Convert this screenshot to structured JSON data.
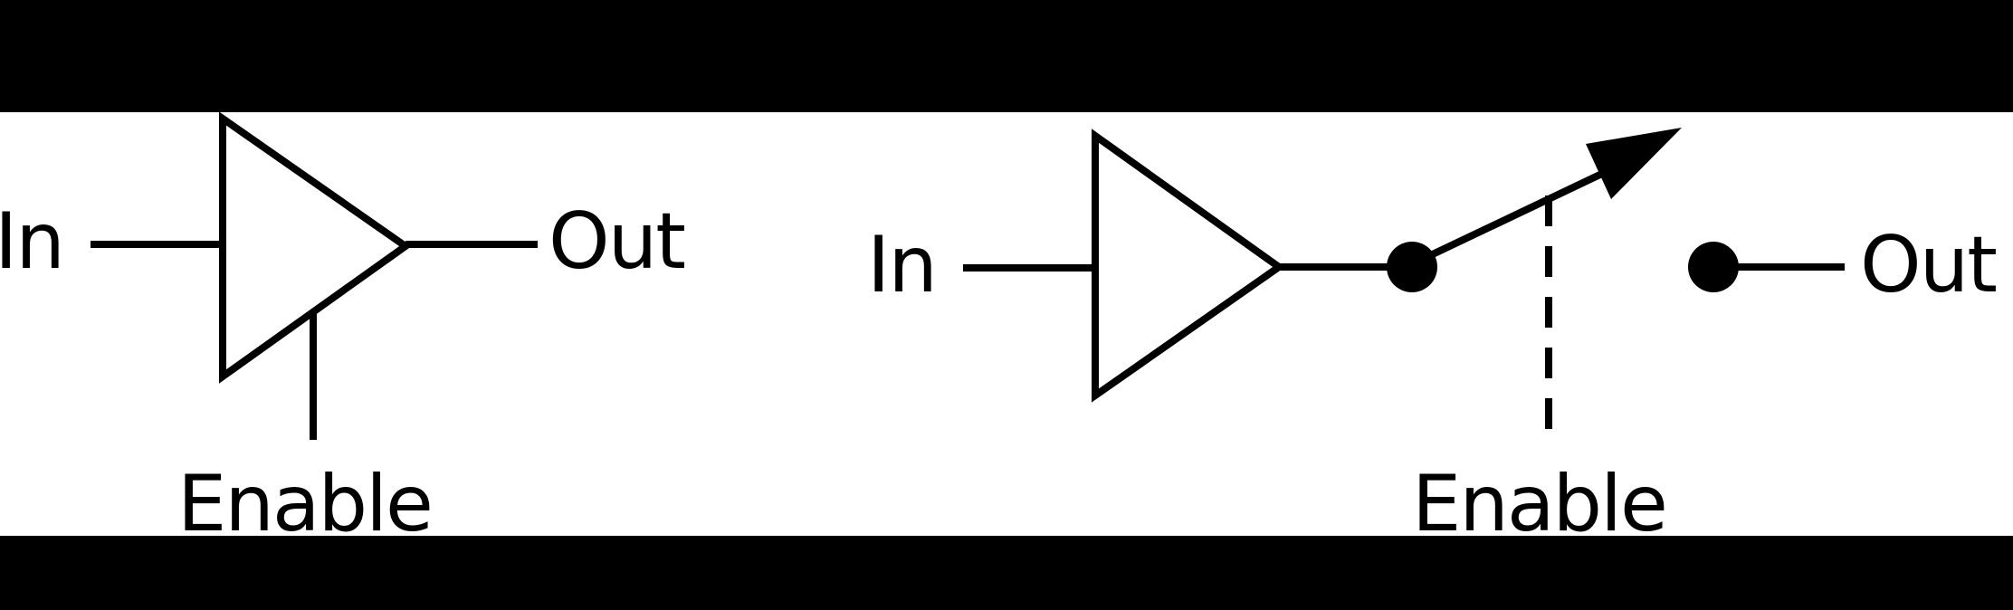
{
  "diagram_a": {
    "in_label": "In",
    "out_label": "Out",
    "enable_label": "Enable"
  },
  "diagram_b": {
    "in_label": "In",
    "out_label": "Out",
    "enable_label": "Enable"
  },
  "colors": {
    "background_band": "#000000",
    "panel": "#ffffff",
    "ink": "#000000"
  }
}
